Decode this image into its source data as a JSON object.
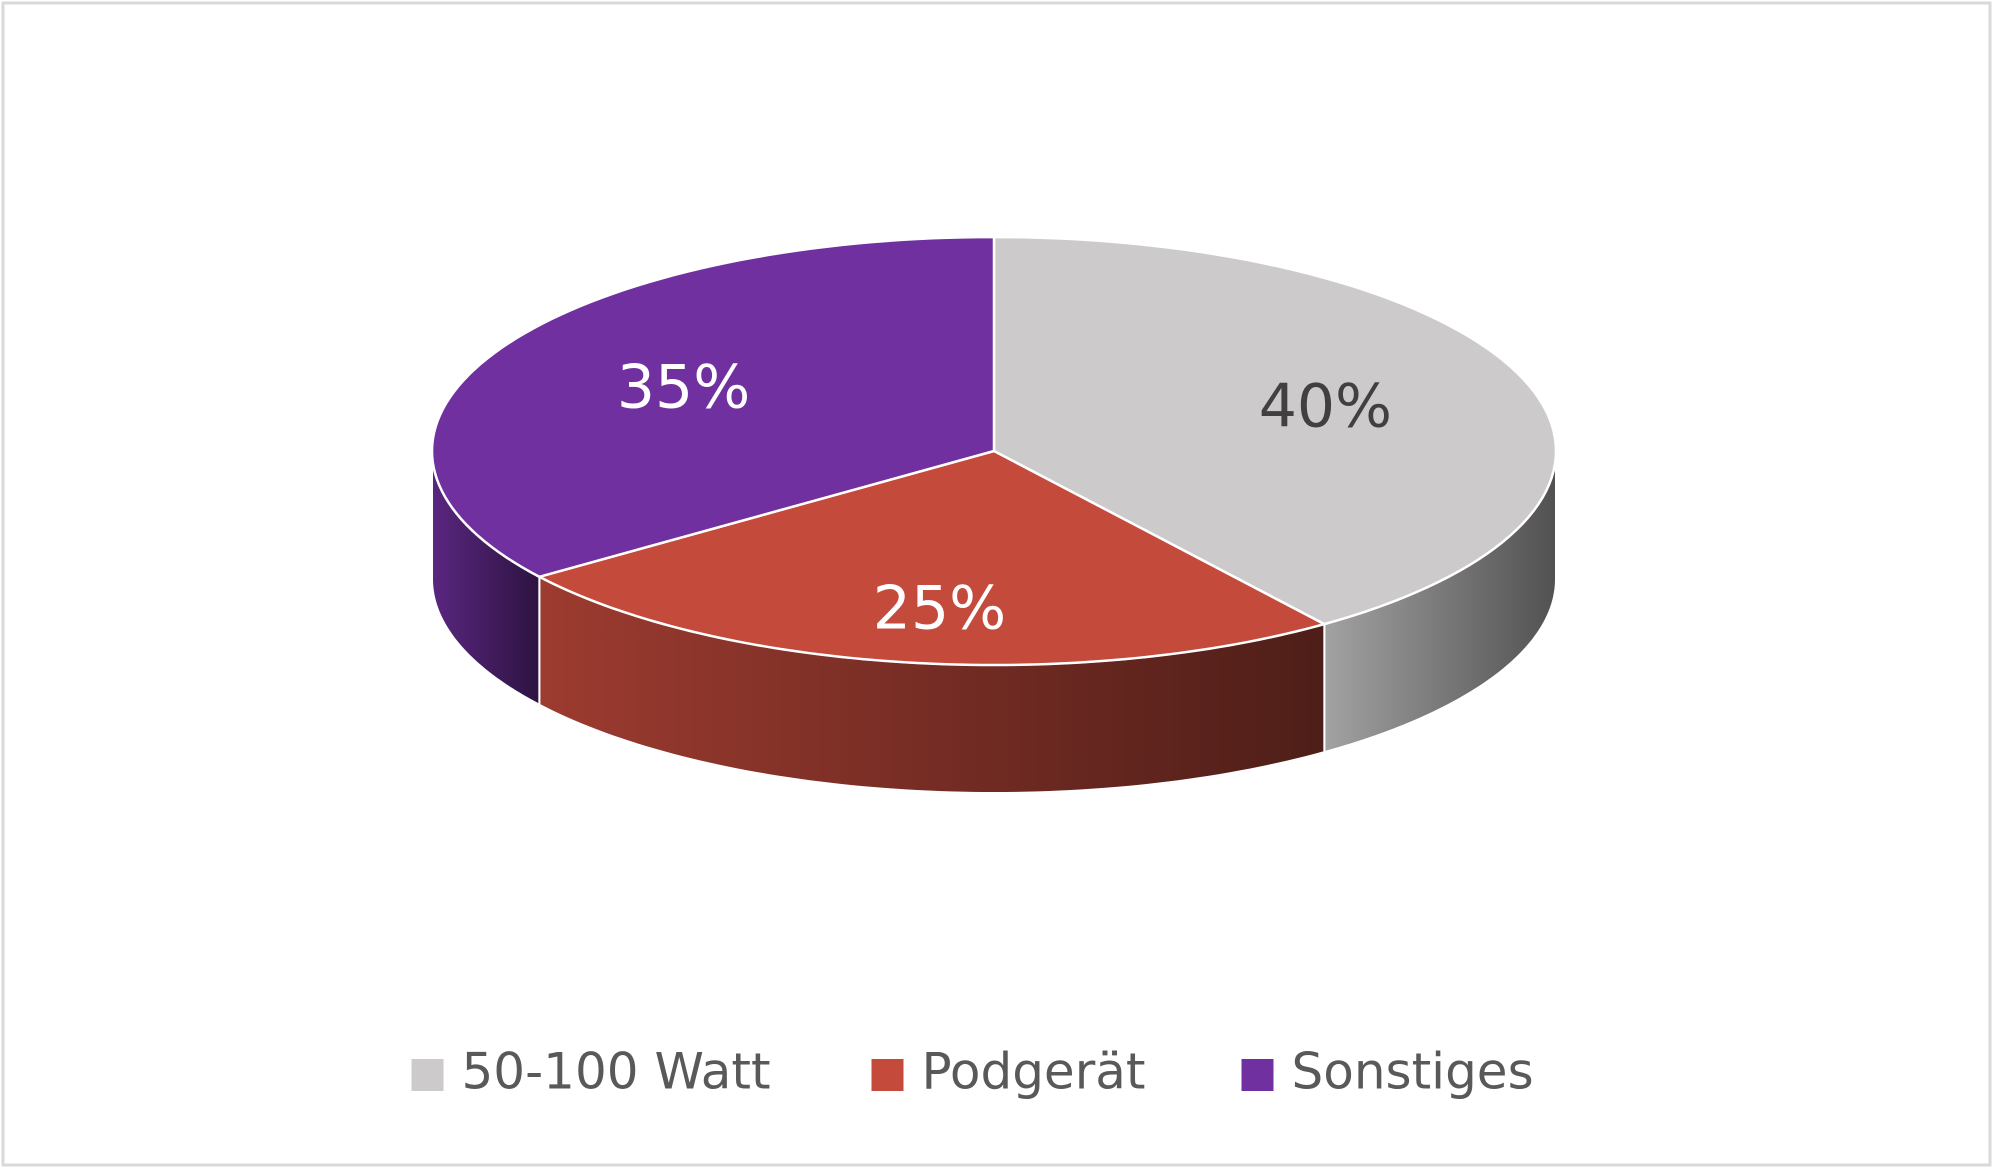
{
  "chart_data": {
    "type": "pie",
    "categories": [
      "50-100 Watt",
      "Podgerät",
      "Sonstiges"
    ],
    "values": [
      40,
      25,
      35
    ],
    "value_labels": [
      "40%",
      "25%",
      "35%"
    ],
    "colors": [
      "#cccaca",
      "#c44a3c",
      "#7030a0"
    ],
    "legend": "bottom"
  }
}
